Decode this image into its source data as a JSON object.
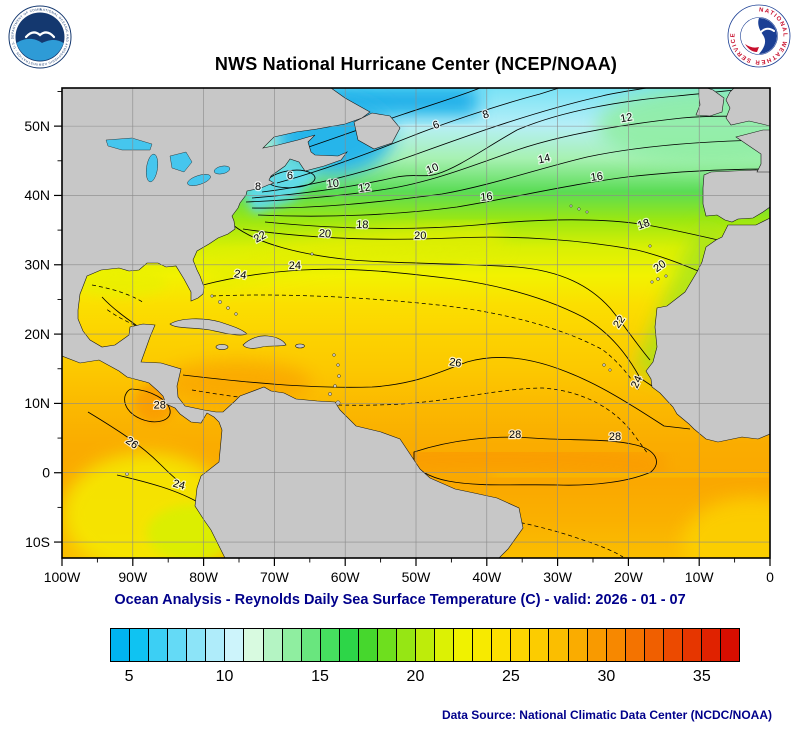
{
  "header": {
    "title": "NWS National Hurricane Center (NCEP/NOAA)",
    "noaa_ring_text": "NATIONAL OCEANIC AND ATMOSPHERIC ADMINISTRATION - U.S. DEPARTMENT OF COMMERCE",
    "nws_ring_text": "NATIONAL WEATHER SERVICE"
  },
  "caption": {
    "subtitle": "Ocean Analysis - Reynolds Daily Sea Surface Temperature (C) - valid: 2026 - 01 - 07"
  },
  "footer": {
    "data_source": "Data Source: National Climatic Data Center (NCDC/NOAA)"
  },
  "map": {
    "lat_ticks": [
      {
        "label": "50N",
        "lat": 50
      },
      {
        "label": "40N",
        "lat": 40
      },
      {
        "label": "30N",
        "lat": 30
      },
      {
        "label": "20N",
        "lat": 20
      },
      {
        "label": "10N",
        "lat": 10
      },
      {
        "label": "0",
        "lat": 0
      },
      {
        "label": "10S",
        "lat": -10
      }
    ],
    "lon_ticks": [
      {
        "label": "100W",
        "lon": -100
      },
      {
        "label": "90W",
        "lon": -90
      },
      {
        "label": "80W",
        "lon": -80
      },
      {
        "label": "70W",
        "lon": -70
      },
      {
        "label": "60W",
        "lon": -60
      },
      {
        "label": "50W",
        "lon": -50
      },
      {
        "label": "40W",
        "lon": -40
      },
      {
        "label": "30W",
        "lon": -30
      },
      {
        "label": "20W",
        "lon": -20
      },
      {
        "label": "10W",
        "lon": -10
      },
      {
        "label": "0",
        "lon": 0
      }
    ],
    "contour_labels": [
      {
        "v": "6",
        "lon": -47.0,
        "lat": 49.7,
        "rot": -20
      },
      {
        "v": "8",
        "lon": -40.0,
        "lat": 51.2,
        "rot": -18
      },
      {
        "v": "8",
        "lon": -72.3,
        "lat": 40.8,
        "rot": 0
      },
      {
        "v": "6",
        "lon": -67.8,
        "lat": 42.4,
        "rot": 0
      },
      {
        "v": "10",
        "lon": -61.7,
        "lat": 41.2,
        "rot": -5
      },
      {
        "v": "10",
        "lon": -47.5,
        "lat": 43.4,
        "rot": -22
      },
      {
        "v": "12",
        "lon": -57.2,
        "lat": 40.6,
        "rot": -8
      },
      {
        "v": "12",
        "lon": -20.2,
        "lat": 50.7,
        "rot": -10
      },
      {
        "v": "14",
        "lon": -31.8,
        "lat": 44.8,
        "rot": -12
      },
      {
        "v": "16",
        "lon": -24.4,
        "lat": 42.2,
        "rot": -8
      },
      {
        "v": "16",
        "lon": -40.0,
        "lat": 39.3,
        "rot": -5
      },
      {
        "v": "18",
        "lon": -17.7,
        "lat": 35.4,
        "rot": -18
      },
      {
        "v": "18",
        "lon": -57.6,
        "lat": 35.3,
        "rot": 3
      },
      {
        "v": "20",
        "lon": -62.9,
        "lat": 34.0,
        "rot": 5
      },
      {
        "v": "20",
        "lon": -49.4,
        "lat": 33.7,
        "rot": 0
      },
      {
        "v": "20",
        "lon": -15.3,
        "lat": 29.4,
        "rot": -35
      },
      {
        "v": "22",
        "lon": -71.8,
        "lat": 33.6,
        "rot": -30
      },
      {
        "v": "22",
        "lon": -20.9,
        "lat": 21.5,
        "rot": -55
      },
      {
        "v": "24",
        "lon": -67.1,
        "lat": 29.4,
        "rot": 0
      },
      {
        "v": "24",
        "lon": -74.9,
        "lat": 28.1,
        "rot": 10
      },
      {
        "v": "24",
        "lon": -18.4,
        "lat": 12.9,
        "rot": -65
      },
      {
        "v": "24",
        "lon": -83.6,
        "lat": -2.2,
        "rot": 15
      },
      {
        "v": "26",
        "lon": -44.5,
        "lat": 15.4,
        "rot": 8
      },
      {
        "v": "26",
        "lon": -90.4,
        "lat": 3.9,
        "rot": 35
      },
      {
        "v": "28",
        "lon": -36.0,
        "lat": 5.0,
        "rot": 0
      },
      {
        "v": "28",
        "lon": -21.9,
        "lat": 4.7,
        "rot": 0
      },
      {
        "v": "28",
        "lon": -86.2,
        "lat": 9.3,
        "rot": 0
      }
    ]
  },
  "colorbar": {
    "min": 4,
    "max": 37,
    "unit_ticks": [
      5,
      10,
      15,
      20,
      25,
      30,
      35
    ],
    "colors": [
      "#00B4F0",
      "#0FC3F2",
      "#3CCFF4",
      "#64DAF6",
      "#8CE4F8",
      "#AFECFA",
      "#CDF4FB",
      "#D8FAE0",
      "#B4F4C3",
      "#8FEEA0",
      "#69E67E",
      "#46DE5F",
      "#2DD648",
      "#46D72D",
      "#6EDF1E",
      "#96E614",
      "#BEEC0A",
      "#DCF104",
      "#F0F200",
      "#F7EA00",
      "#FBDF00",
      "#FCD600",
      "#FCCC00",
      "#FBBE00",
      "#FAAC00",
      "#F99A00",
      "#F78800",
      "#F47300",
      "#F05F00",
      "#EC4A00",
      "#E63600",
      "#E02200",
      "#D70E00"
    ]
  },
  "chart_data": {
    "type": "heatmap",
    "title": "NWS National Hurricane Center (NCEP/NOAA)",
    "subtitle": "Ocean Analysis - Reynolds Daily Sea Surface Temperature (C) - valid: 2026 - 01 - 07",
    "variable": "Reynolds Daily Sea Surface Temperature",
    "units": "C",
    "valid_date": "2026 - 01 - 07",
    "lon_range": [
      -100,
      0
    ],
    "lat_range": [
      -12.3,
      55.5
    ],
    "lon_tick_labels": [
      "100W",
      "90W",
      "80W",
      "70W",
      "60W",
      "50W",
      "40W",
      "30W",
      "20W",
      "10W",
      "0"
    ],
    "lat_tick_labels": [
      "10S",
      "0",
      "10N",
      "20N",
      "30N",
      "40N",
      "50N"
    ],
    "grid": true,
    "contour_interval_c": 2,
    "labeled_isotherms_c": [
      6,
      8,
      10,
      12,
      14,
      16,
      18,
      20,
      22,
      24,
      26,
      28
    ],
    "colorbar_range_c": [
      4,
      37
    ],
    "colorbar_tick_values": [
      5,
      10,
      15,
      20,
      25,
      30,
      35
    ],
    "data_source": "National Climatic Data Center (NCDC/NOAA)"
  }
}
